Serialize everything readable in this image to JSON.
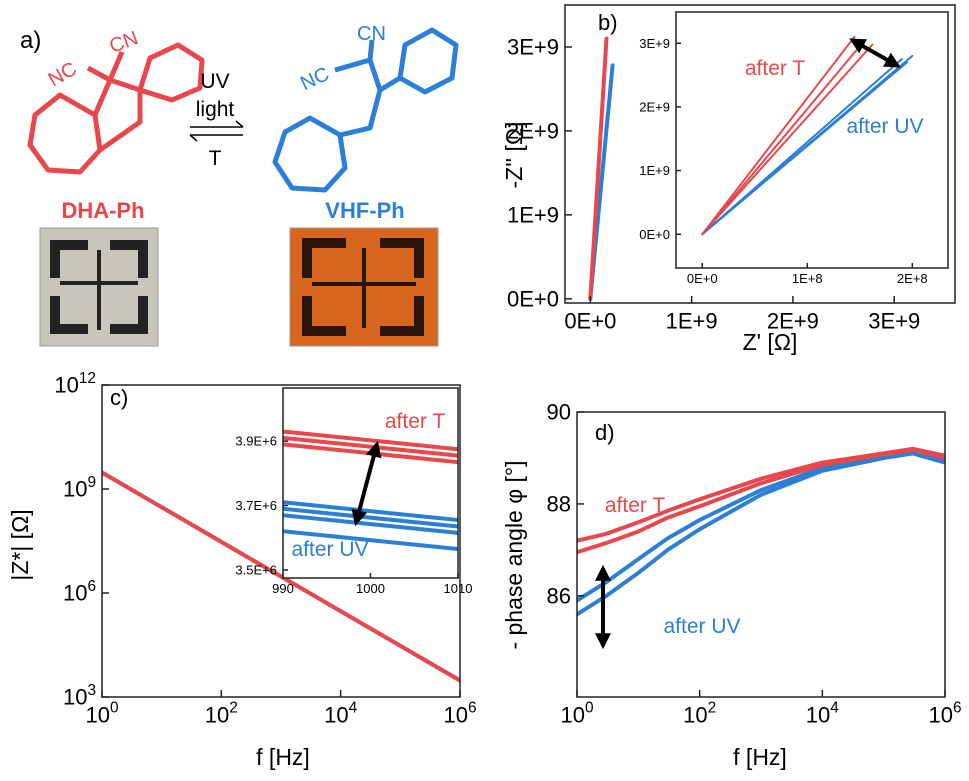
{
  "scheme": {
    "label": "a)",
    "dha": {
      "nc": "NC",
      "cn": "CN",
      "name": "DHA-Ph"
    },
    "vhf": {
      "nc": "NC",
      "cn": "CN",
      "name": "VHF-Ph"
    },
    "arrow": {
      "top": "UV",
      "middle": "light",
      "bottom": "T"
    }
  },
  "chart_data": [
    {
      "type": "line",
      "panel_label": "b)",
      "xlabel": "Z' [Ω]",
      "ylabel": "-Z'' [Ω]",
      "xlim": [
        -250000000,
        3600000000
      ],
      "ylim": [
        -50000000,
        3500000000
      ],
      "xticks": [
        {
          "value": 0,
          "label": "0E+0"
        },
        {
          "value": 1000000000,
          "label": "1E+9"
        },
        {
          "value": 2000000000,
          "label": "2E+9"
        },
        {
          "value": 3000000000,
          "label": "3E+9"
        }
      ],
      "yticks": [
        {
          "value": 0,
          "label": "0E+0"
        },
        {
          "value": 1000000000,
          "label": "1E+9"
        },
        {
          "value": 2000000000,
          "label": "2E+9"
        },
        {
          "value": 3000000000,
          "label": "3E+9"
        }
      ],
      "series": [
        {
          "color": "#2b7fd6",
          "x": [
            0,
            220000000
          ],
          "values": [
            0,
            2780000000
          ]
        },
        {
          "color": "#e8474c",
          "x": [
            0,
            160000000
          ],
          "values": [
            0,
            3100000000
          ]
        }
      ]
    },
    {
      "type": "line",
      "xlim": [
        -25000000,
        234000000
      ],
      "ylim": [
        -530000000,
        3490000000
      ],
      "xticks": [
        {
          "value": 0,
          "label": "0E+0"
        },
        {
          "value": 100000000,
          "label": "1E+8"
        },
        {
          "value": 200000000,
          "label": "2E+8"
        }
      ],
      "yticks": [
        {
          "value": 0,
          "label": "0E+0"
        },
        {
          "value": 1000000000,
          "label": "1E+9"
        },
        {
          "value": 2000000000,
          "label": "2E+9"
        },
        {
          "value": 3000000000,
          "label": "3E+9"
        }
      ],
      "series": [
        {
          "color": "#2b7fd6",
          "x": [
            0,
            190000000
          ],
          "values": [
            0,
            2750000000
          ]
        },
        {
          "color": "#2b7fd6",
          "x": [
            0,
            200000000
          ],
          "values": [
            0,
            2800000000
          ]
        },
        {
          "color": "#2b7fd6",
          "x": [
            0,
            195000000
          ],
          "values": [
            0,
            2700000000
          ]
        },
        {
          "color": "#e8474c",
          "x": [
            0,
            145000000
          ],
          "values": [
            0,
            3100000000
          ]
        },
        {
          "color": "#e8474c",
          "x": [
            0,
            155000000
          ],
          "values": [
            0,
            3050000000
          ]
        },
        {
          "color": "#e8474c",
          "x": [
            0,
            162000000
          ],
          "values": [
            0,
            2980000000
          ]
        }
      ],
      "annotations": [
        {
          "text": "after T",
          "color": "#e8474c"
        },
        {
          "text": "after UV",
          "color": "#2b7fd6"
        }
      ]
    },
    {
      "type": "line",
      "panel_label": "c)",
      "xlabel": "f [Hz]",
      "ylabel": "|Z*| [Ω]",
      "xscale": "log",
      "yscale": "log",
      "xlim": [
        1,
        1000000
      ],
      "ylim": [
        1000,
        1000000000000
      ],
      "xticks": [
        {
          "value": 1,
          "label": "10",
          "exponent": "0"
        },
        {
          "value": 100,
          "label": "10",
          "exponent": "2"
        },
        {
          "value": 10000,
          "label": "10",
          "exponent": "4"
        },
        {
          "value": 1000000,
          "label": "10",
          "exponent": "6"
        }
      ],
      "yticks": [
        {
          "value": 1000,
          "label": "10",
          "exponent": "3"
        },
        {
          "value": 1000000,
          "label": "10",
          "exponent": "6"
        },
        {
          "value": 1000000000,
          "label": "10",
          "exponent": "9"
        },
        {
          "value": 1000000000000,
          "label": "10",
          "exponent": "12"
        }
      ],
      "series": [
        {
          "color": "#2b7fd6",
          "x": [
            1,
            1000000
          ],
          "values": [
            3000000000,
            3000
          ]
        },
        {
          "color": "#e8474c",
          "x": [
            1,
            1000000
          ],
          "values": [
            3000000000,
            3000
          ]
        }
      ]
    },
    {
      "type": "line",
      "xlim": [
        990,
        1010
      ],
      "ylim": [
        3475000,
        4065000
      ],
      "xticks": [
        990,
        1000,
        1010
      ],
      "yticks": [
        {
          "value": 3500000,
          "label": "3.5E+6"
        },
        {
          "value": 3700000,
          "label": "3.7E+6"
        },
        {
          "value": 3900000,
          "label": "3.9E+6"
        }
      ],
      "series": [
        {
          "color": "#e8474c",
          "x": [
            990,
            1010
          ],
          "values": [
            3930000,
            3875000
          ]
        },
        {
          "color": "#e8474c",
          "x": [
            990,
            1010
          ],
          "values": [
            3910000,
            3855000
          ]
        },
        {
          "color": "#e8474c",
          "x": [
            990,
            1010
          ],
          "values": [
            3890000,
            3835000
          ]
        },
        {
          "color": "#2b7fd6",
          "x": [
            990,
            1010
          ],
          "values": [
            3710000,
            3655000
          ]
        },
        {
          "color": "#2b7fd6",
          "x": [
            990,
            1010
          ],
          "values": [
            3690000,
            3635000
          ]
        },
        {
          "color": "#2b7fd6",
          "x": [
            990,
            1010
          ],
          "values": [
            3670000,
            3615000
          ]
        },
        {
          "color": "#2b7fd6",
          "x": [
            990,
            1010
          ],
          "values": [
            3620000,
            3565000
          ]
        }
      ],
      "annotations": [
        {
          "text": "after T",
          "color": "#e8474c"
        },
        {
          "text": "after UV",
          "color": "#2b7fd6"
        }
      ]
    },
    {
      "type": "line",
      "panel_label": "d)",
      "xlabel": "f [Hz]",
      "ylabel": "- phase angle φ [°]",
      "xscale": "log",
      "xlim": [
        1,
        1000000
      ],
      "ylim": [
        83.8,
        90
      ],
      "xticks": [
        {
          "value": 1,
          "label": "10",
          "exponent": "0"
        },
        {
          "value": 100,
          "label": "10",
          "exponent": "2"
        },
        {
          "value": 10000,
          "label": "10",
          "exponent": "4"
        },
        {
          "value": 1000000,
          "label": "10",
          "exponent": "6"
        }
      ],
      "yticks": [
        86,
        88,
        90
      ],
      "series": [
        {
          "color": "#2b7fd6",
          "x": [
            1,
            3,
            10,
            30,
            100,
            1000,
            10000,
            100000,
            300000,
            1000000
          ],
          "values": [
            85.9,
            86.3,
            86.8,
            87.25,
            87.65,
            88.3,
            88.78,
            89.05,
            89.15,
            88.95
          ]
        },
        {
          "color": "#2b7fd6",
          "x": [
            1,
            3,
            10,
            30,
            100,
            1000,
            10000,
            100000,
            300000,
            1000000
          ],
          "values": [
            85.6,
            86.0,
            86.5,
            87.0,
            87.45,
            88.2,
            88.72,
            89.0,
            89.1,
            88.9
          ]
        },
        {
          "color": "#e8474c",
          "x": [
            1,
            3,
            10,
            30,
            100,
            1000,
            10000,
            100000,
            300000,
            1000000
          ],
          "values": [
            87.2,
            87.35,
            87.6,
            87.85,
            88.1,
            88.55,
            88.9,
            89.1,
            89.2,
            89.05
          ]
        },
        {
          "color": "#e8474c",
          "x": [
            1,
            3,
            10,
            30,
            100,
            1000,
            10000,
            100000,
            300000,
            1000000
          ],
          "values": [
            86.95,
            87.15,
            87.4,
            87.7,
            87.95,
            88.45,
            88.85,
            89.08,
            89.18,
            89.0
          ]
        }
      ],
      "annotations": [
        {
          "text": "after T",
          "color": "#e8474c"
        },
        {
          "text": "after UV",
          "color": "#2b7fd6"
        }
      ]
    }
  ]
}
